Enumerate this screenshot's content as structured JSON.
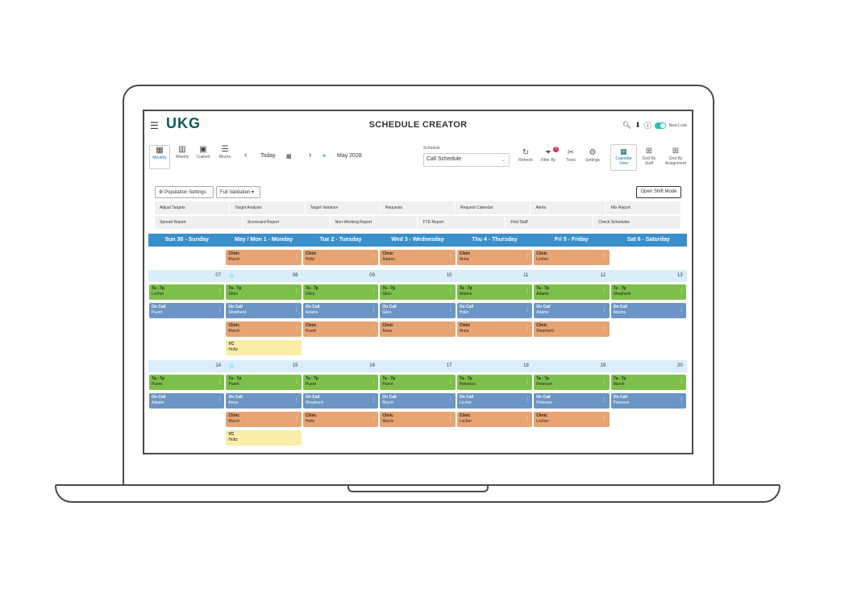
{
  "header": {
    "menu_icon": "hamburger-icon",
    "logo": "UKG",
    "title": "SCHEDULE CREATOR",
    "new_look_label": "New Look"
  },
  "toolbar": {
    "views": [
      {
        "label": "Monthly",
        "icon": "calendar-icon"
      },
      {
        "label": "Weekly",
        "icon": "columns-icon"
      },
      {
        "label": "Custom",
        "icon": "calendar-icon"
      },
      {
        "label": "Blocks",
        "icon": "list-icon"
      }
    ],
    "today_label": "Today",
    "period": "May 2028",
    "schedule_label": "Schedule",
    "schedule_value": "Call Schedule",
    "refresh_label": "Refresh",
    "filter_label": "Filter By",
    "filter_badge": "2",
    "tools_label": "Tools",
    "settings_label": "Settings",
    "calendar_view_label": "Calendar View",
    "grid_staff_label": "Grid By Staff",
    "grid_assign_label": "Grid By Assignment"
  },
  "actions": {
    "population_settings": "Population Settings",
    "full_validation": "Full Validation",
    "open_shift_mode": "Open Shift Mode"
  },
  "links_row1": [
    "Adjust Targets",
    "Target Analysis",
    "Target Variance",
    "Requests",
    "Request Calendar",
    "Alerts",
    "Mix Report"
  ],
  "links_row2": [
    "Spread Report",
    "Scorecard Report",
    "Non-Working Report",
    "FTE Report",
    "Find Staff",
    "Check Schedules"
  ],
  "days": [
    "Sun 30 - Sunday",
    "May / Mon 1 - Monday",
    "Tue 2 - Tuesday",
    "Wed 3 - Wednesday",
    "Thu 4 - Thursday",
    "Fri 5 - Friday",
    "Sat 6 - Saturday"
  ],
  "week0": {
    "row_orange": [
      "",
      "Clinic|Murch",
      "Clinic|Holtz",
      "Clinic|Adams",
      "Clinic|Anna",
      "Clinic|Locher",
      ""
    ]
  },
  "week1": {
    "dates": [
      "07",
      "08",
      "09",
      "10",
      "11",
      "12",
      "13"
    ],
    "green": [
      "7a - 7p|Locher",
      "7a - 7p|Giles",
      "7a - 7p|Giles",
      "7a - 7p|Giles",
      "7a - 7p|Adams",
      "7a - 7p|Adams",
      "7a - 7p|Shepherd"
    ],
    "blue": [
      "On Call|Puent",
      "On Call|Shepherd",
      "On Call|Adams",
      "On Call|Giles",
      "On Call|Holtz",
      "On Call|Adams",
      "On Call|Adams"
    ],
    "orange": [
      "",
      "Clinic|Murch",
      "Clinic|Puent",
      "Clinic|Anna",
      "Clinic|Anna",
      "Clinic|Shepherd",
      ""
    ],
    "yellow": [
      "",
      "VC|Holtz",
      "",
      "",
      "",
      "",
      ""
    ]
  },
  "week2": {
    "dates": [
      "14",
      "15",
      "16",
      "17",
      "18",
      "19",
      "20"
    ],
    "green": [
      "7a - 7p|Puent",
      "7a - 7p|Puent",
      "7a - 7p|Puent",
      "7a - 7p|Puent",
      "7a - 7p|Peterson",
      "7a - 7p|Peterson",
      "7a - 7p|Murch"
    ],
    "blue": [
      "On Call|Adams",
      "On Call|Anna",
      "On Call|Shepherd",
      "On Call|Murch",
      "On Call|Locher",
      "On Call|Peterson",
      "On Call|Peterson"
    ],
    "orange": [
      "",
      "Clinic|Murch",
      "Clinic|Holtz",
      "Clinic|Murch",
      "Clinic|Locher",
      "Clinic|Locher",
      ""
    ],
    "yellow": [
      "",
      "VC|Holtz",
      "",
      "",
      "",
      "",
      ""
    ]
  },
  "colors": {
    "brand": "#0b5c58",
    "accent": "#2cc4b5",
    "day_header": "#3a8ec9",
    "shift_green": "#7cbf4a",
    "shift_blue": "#6a95c4",
    "shift_orange": "#e7a472",
    "shift_yellow": "#faeda8"
  }
}
